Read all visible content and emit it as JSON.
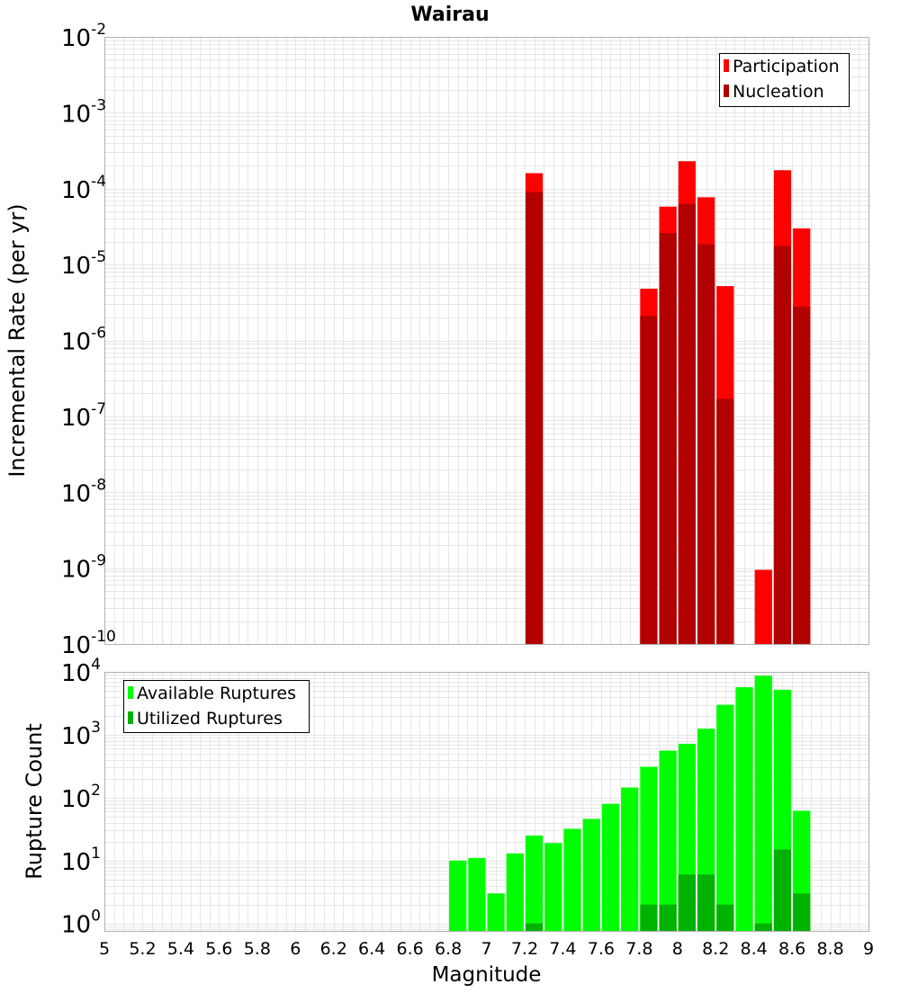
{
  "title": "Wairau",
  "colors": {
    "participation": "#ff0000",
    "nucleation": "#b20000",
    "available": "#00ff00",
    "utilized": "#00b200",
    "grid": "#e6e6e6",
    "frame": "#b0b0b0"
  },
  "chart_data": [
    {
      "type": "bar",
      "title": "Wairau",
      "xlabel": "",
      "ylabel": "Incremental Rate (per yr)",
      "yscale": "log",
      "ylim": [
        1e-10,
        0.01
      ],
      "xlim": [
        5,
        9
      ],
      "bar_width": 0.1,
      "grid": true,
      "legend_position": "top-right",
      "yticks": [
        {
          "base": "10",
          "exp": "-10",
          "value": 1e-10
        },
        {
          "base": "10",
          "exp": "-9",
          "value": 1e-09
        },
        {
          "base": "10",
          "exp": "-8",
          "value": 1e-08
        },
        {
          "base": "10",
          "exp": "-7",
          "value": 1e-07
        },
        {
          "base": "10",
          "exp": "-6",
          "value": 1e-06
        },
        {
          "base": "10",
          "exp": "-5",
          "value": 1e-05
        },
        {
          "base": "10",
          "exp": "-4",
          "value": 0.0001
        },
        {
          "base": "10",
          "exp": "-3",
          "value": 0.001
        },
        {
          "base": "10",
          "exp": "-2",
          "value": 0.01
        }
      ],
      "series": [
        {
          "name": "Participation",
          "color": "#ff0000",
          "x": [
            7.25,
            7.85,
            7.95,
            8.05,
            8.15,
            8.25,
            8.45,
            8.55,
            8.65
          ],
          "values": [
            0.00016,
            4.8e-06,
            5.8e-05,
            0.00023,
            7.7e-05,
            5.2e-06,
            9.5e-10,
            0.000175,
            3e-05
          ]
        },
        {
          "name": "Nucleation",
          "color": "#b20000",
          "x": [
            7.25,
            7.85,
            7.95,
            8.05,
            8.15,
            8.25,
            8.55,
            8.65
          ],
          "values": [
            9e-05,
            2.1e-06,
            2.6e-05,
            6.3e-05,
            1.85e-05,
            1.7e-07,
            1.75e-05,
            2.8e-06
          ]
        }
      ]
    },
    {
      "type": "bar",
      "title": "",
      "xlabel": "Magnitude",
      "ylabel": "Rupture Count",
      "yscale": "log",
      "ylim": [
        0.76,
        10000
      ],
      "xlim": [
        5,
        9
      ],
      "bar_width": 0.1,
      "grid": true,
      "legend_position": "top-left",
      "xticks": [
        "5",
        "5.2",
        "5.4",
        "5.6",
        "5.8",
        "6",
        "6.2",
        "6.4",
        "6.6",
        "6.8",
        "7",
        "7.2",
        "7.4",
        "7.6",
        "7.8",
        "8",
        "8.2",
        "8.4",
        "8.6",
        "8.8",
        "9"
      ],
      "yticks": [
        {
          "base": "10",
          "exp": "0",
          "value": 1
        },
        {
          "base": "10",
          "exp": "1",
          "value": 10
        },
        {
          "base": "10",
          "exp": "2",
          "value": 100
        },
        {
          "base": "10",
          "exp": "3",
          "value": 1000
        },
        {
          "base": "10",
          "exp": "4",
          "value": 10000
        }
      ],
      "series": [
        {
          "name": "Available Ruptures",
          "color": "#00ff00",
          "x": [
            6.85,
            6.95,
            7.05,
            7.15,
            7.25,
            7.35,
            7.45,
            7.55,
            7.65,
            7.75,
            7.85,
            7.95,
            8.05,
            8.15,
            8.25,
            8.35,
            8.45,
            8.55,
            8.65
          ],
          "values": [
            10,
            11,
            3,
            13,
            25,
            19,
            32,
            46,
            80,
            145,
            310,
            560,
            720,
            1250,
            3000,
            5700,
            8700,
            5200,
            62
          ]
        },
        {
          "name": "Utilized Ruptures",
          "color": "#00b200",
          "x": [
            7.25,
            7.85,
            7.95,
            8.05,
            8.15,
            8.25,
            8.45,
            8.55,
            8.65
          ],
          "values": [
            1,
            2,
            2,
            6,
            6,
            2,
            1,
            15,
            3
          ]
        }
      ]
    }
  ]
}
